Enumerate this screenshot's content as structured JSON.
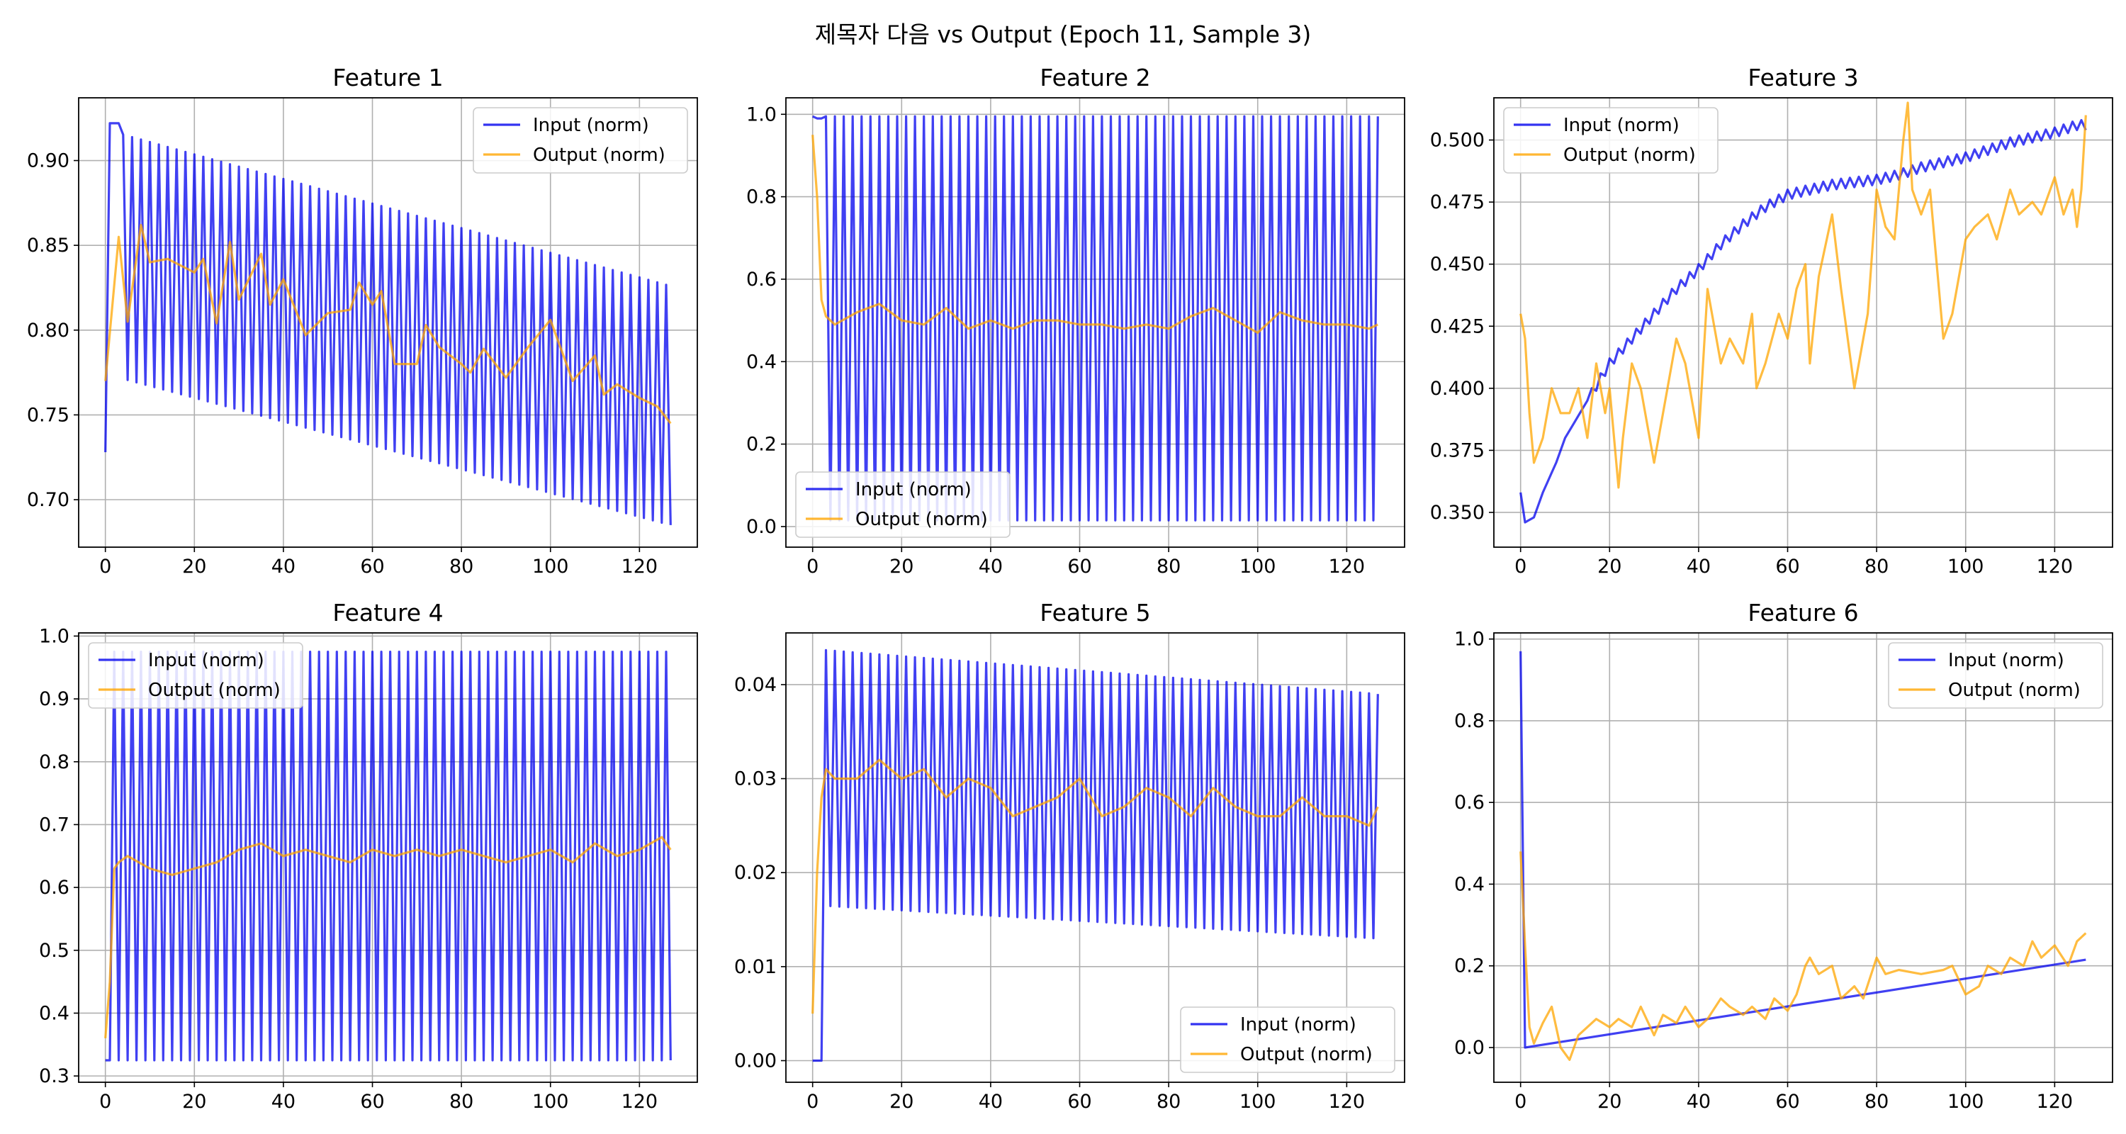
{
  "figure": {
    "title": "제목자 다음 vs Output (Epoch 11, Sample 3)"
  },
  "colors": {
    "input": "#0000ee",
    "output": "#ffa500",
    "grid": "#b0b0b0"
  },
  "chart_data": [
    {
      "type": "line",
      "title": "Feature 1",
      "legend_position": "upper right",
      "xlim": [
        -6,
        133
      ],
      "ylim": [
        0.672,
        0.937
      ],
      "xticks": [
        0,
        20,
        40,
        60,
        80,
        100,
        120
      ],
      "yticks": [
        0.7,
        0.75,
        0.8,
        0.85,
        0.9
      ],
      "ytick_labels": [
        "0.70",
        "0.75",
        "0.80",
        "0.85",
        "0.90"
      ],
      "grid": true,
      "input_model": {
        "kind": "osc_linear",
        "start": [
          [
            0,
            0.728
          ],
          [
            1,
            0.922
          ],
          [
            2,
            0.922
          ],
          [
            3,
            0.922
          ]
        ],
        "from": 3,
        "hi0": 0.916,
        "hi1": 0.826,
        "lo0": 0.772,
        "lo1": 0.685
      },
      "series": [
        {
          "name": "Input (norm)",
          "role": "input",
          "x_range": [
            0,
            127
          ]
        },
        {
          "name": "Output (norm)",
          "role": "output",
          "x": [
            0,
            3,
            5,
            8,
            10,
            14,
            20,
            22,
            25,
            28,
            30,
            35,
            37,
            40,
            45,
            50,
            55,
            57,
            60,
            62,
            65,
            70,
            72,
            75,
            80,
            82,
            85,
            90,
            95,
            100,
            105,
            110,
            112,
            115,
            120,
            124,
            127
          ],
          "y": [
            0.77,
            0.855,
            0.805,
            0.862,
            0.84,
            0.842,
            0.834,
            0.842,
            0.804,
            0.852,
            0.818,
            0.845,
            0.815,
            0.83,
            0.797,
            0.81,
            0.812,
            0.828,
            0.815,
            0.823,
            0.78,
            0.78,
            0.803,
            0.79,
            0.78,
            0.775,
            0.789,
            0.772,
            0.79,
            0.806,
            0.77,
            0.785,
            0.762,
            0.768,
            0.76,
            0.755,
            0.745
          ]
        }
      ]
    },
    {
      "type": "line",
      "title": "Feature 2",
      "legend_position": "lower left",
      "xlim": [
        -6,
        133
      ],
      "ylim": [
        -0.05,
        1.04
      ],
      "xticks": [
        0,
        20,
        40,
        60,
        80,
        100,
        120
      ],
      "yticks": [
        0.0,
        0.2,
        0.4,
        0.6,
        0.8,
        1.0
      ],
      "ytick_labels": [
        "0.0",
        "0.2",
        "0.4",
        "0.6",
        "0.8",
        "1.0"
      ],
      "grid": true,
      "input_model": {
        "kind": "osc_linear",
        "start": [
          [
            0,
            0.995
          ],
          [
            1,
            0.99
          ],
          [
            2,
            0.99
          ]
        ],
        "from": 2,
        "hi0": 0.995,
        "hi1": 0.995,
        "lo0": 0.015,
        "lo1": 0.015
      },
      "series": [
        {
          "name": "Input (norm)",
          "role": "input",
          "x_range": [
            0,
            127
          ]
        },
        {
          "name": "Output (norm)",
          "role": "output",
          "x": [
            0,
            1,
            2,
            3,
            5,
            10,
            15,
            20,
            25,
            30,
            35,
            40,
            45,
            50,
            55,
            60,
            65,
            70,
            75,
            80,
            85,
            90,
            95,
            100,
            105,
            110,
            115,
            120,
            125,
            127
          ],
          "y": [
            0.95,
            0.8,
            0.55,
            0.51,
            0.49,
            0.52,
            0.54,
            0.5,
            0.49,
            0.53,
            0.48,
            0.5,
            0.48,
            0.5,
            0.5,
            0.49,
            0.49,
            0.48,
            0.49,
            0.48,
            0.51,
            0.53,
            0.5,
            0.47,
            0.52,
            0.5,
            0.49,
            0.49,
            0.48,
            0.49
          ]
        }
      ]
    },
    {
      "type": "line",
      "title": "Feature 3",
      "legend_position": "upper left",
      "xlim": [
        -6,
        133
      ],
      "ylim": [
        0.336,
        0.517
      ],
      "xticks": [
        0,
        20,
        40,
        60,
        80,
        100,
        120
      ],
      "yticks": [
        0.35,
        0.375,
        0.4,
        0.425,
        0.45,
        0.475,
        0.5
      ],
      "ytick_labels": [
        "0.350",
        "0.375",
        "0.400",
        "0.425",
        "0.450",
        "0.475",
        "0.500"
      ],
      "grid": true,
      "input_model": {
        "kind": "wavy",
        "wiggle": 0.002
      },
      "series": [
        {
          "name": "Input (norm)",
          "role": "input",
          "x": [
            0,
            1,
            3,
            5,
            8,
            10,
            15,
            20,
            25,
            30,
            35,
            40,
            45,
            50,
            55,
            60,
            65,
            70,
            75,
            80,
            85,
            90,
            95,
            100,
            105,
            110,
            115,
            120,
            125,
            127
          ],
          "y": [
            0.358,
            0.346,
            0.348,
            0.358,
            0.37,
            0.38,
            0.395,
            0.41,
            0.42,
            0.43,
            0.44,
            0.448,
            0.458,
            0.466,
            0.473,
            0.478,
            0.48,
            0.482,
            0.483,
            0.484,
            0.486,
            0.489,
            0.491,
            0.493,
            0.496,
            0.499,
            0.501,
            0.503,
            0.506,
            0.506
          ]
        },
        {
          "name": "Output (norm)",
          "role": "output",
          "x": [
            0,
            1,
            2,
            3,
            5,
            7,
            9,
            11,
            13,
            15,
            17,
            19,
            20,
            22,
            23,
            25,
            27,
            30,
            32,
            35,
            37,
            40,
            42,
            45,
            47,
            50,
            52,
            53,
            55,
            58,
            60,
            62,
            64,
            65,
            67,
            70,
            72,
            75,
            78,
            80,
            82,
            84,
            86,
            87,
            88,
            90,
            92,
            95,
            97,
            100,
            102,
            105,
            107,
            110,
            112,
            115,
            117,
            120,
            122,
            124,
            125,
            126,
            127
          ],
          "y": [
            0.43,
            0.42,
            0.39,
            0.37,
            0.38,
            0.4,
            0.39,
            0.39,
            0.4,
            0.38,
            0.41,
            0.39,
            0.4,
            0.36,
            0.38,
            0.41,
            0.4,
            0.37,
            0.39,
            0.42,
            0.41,
            0.38,
            0.44,
            0.41,
            0.42,
            0.41,
            0.43,
            0.4,
            0.41,
            0.43,
            0.42,
            0.44,
            0.45,
            0.41,
            0.445,
            0.47,
            0.44,
            0.4,
            0.43,
            0.48,
            0.465,
            0.46,
            0.5,
            0.515,
            0.48,
            0.47,
            0.48,
            0.42,
            0.43,
            0.46,
            0.465,
            0.47,
            0.46,
            0.48,
            0.47,
            0.475,
            0.47,
            0.485,
            0.47,
            0.48,
            0.465,
            0.48,
            0.51
          ]
        }
      ]
    },
    {
      "type": "line",
      "title": "Feature 4",
      "legend_position": "upper left",
      "xlim": [
        -6,
        133
      ],
      "ylim": [
        0.29,
        1.005
      ],
      "xticks": [
        0,
        20,
        40,
        60,
        80,
        100,
        120
      ],
      "yticks": [
        0.3,
        0.4,
        0.5,
        0.6,
        0.7,
        0.8,
        0.9,
        1.0
      ],
      "ytick_labels": [
        "0.3",
        "0.4",
        "0.5",
        "0.6",
        "0.7",
        "0.8",
        "0.9",
        "1.0"
      ],
      "grid": true,
      "input_model": {
        "kind": "osc_linear",
        "start": [
          [
            0,
            0.325
          ],
          [
            1,
            0.325
          ]
        ],
        "from": 1,
        "hi0": 0.975,
        "hi1": 0.975,
        "lo0": 0.325,
        "lo1": 0.325
      },
      "series": [
        {
          "name": "Input (norm)",
          "role": "input",
          "x_range": [
            0,
            127
          ]
        },
        {
          "name": "Output (norm)",
          "role": "output",
          "x": [
            0,
            1,
            2,
            3,
            5,
            10,
            15,
            20,
            25,
            30,
            35,
            40,
            45,
            50,
            55,
            60,
            65,
            70,
            75,
            80,
            85,
            90,
            95,
            100,
            105,
            110,
            115,
            120,
            125,
            127
          ],
          "y": [
            0.36,
            0.45,
            0.63,
            0.64,
            0.65,
            0.63,
            0.62,
            0.63,
            0.64,
            0.66,
            0.67,
            0.65,
            0.66,
            0.65,
            0.64,
            0.66,
            0.65,
            0.66,
            0.65,
            0.66,
            0.65,
            0.64,
            0.65,
            0.66,
            0.64,
            0.67,
            0.65,
            0.66,
            0.68,
            0.66
          ]
        }
      ]
    },
    {
      "type": "line",
      "title": "Feature 5",
      "legend_position": "lower right",
      "xlim": [
        -6,
        133
      ],
      "ylim": [
        -0.0023,
        0.0455
      ],
      "xticks": [
        0,
        20,
        40,
        60,
        80,
        100,
        120
      ],
      "yticks": [
        0.0,
        0.01,
        0.02,
        0.03,
        0.04
      ],
      "ytick_labels": [
        "0.00",
        "0.01",
        "0.02",
        "0.03",
        "0.04"
      ],
      "grid": true,
      "input_model": {
        "kind": "osc_linear",
        "start": [
          [
            0,
            0.0
          ],
          [
            1,
            0.0
          ],
          [
            2,
            0.0
          ]
        ],
        "from": 2,
        "hi0": 0.0437,
        "hi1": 0.039,
        "lo0": 0.0165,
        "lo1": 0.013
      },
      "series": [
        {
          "name": "Input (norm)",
          "role": "input",
          "x_range": [
            0,
            127
          ]
        },
        {
          "name": "Output (norm)",
          "role": "output",
          "x": [
            0,
            1,
            2,
            3,
            5,
            10,
            15,
            20,
            25,
            30,
            35,
            40,
            45,
            50,
            55,
            60,
            65,
            70,
            75,
            80,
            85,
            90,
            95,
            100,
            105,
            110,
            115,
            120,
            125,
            127
          ],
          "y": [
            0.005,
            0.02,
            0.028,
            0.031,
            0.03,
            0.03,
            0.032,
            0.03,
            0.031,
            0.028,
            0.03,
            0.029,
            0.026,
            0.027,
            0.028,
            0.03,
            0.026,
            0.027,
            0.029,
            0.028,
            0.026,
            0.029,
            0.027,
            0.026,
            0.026,
            0.028,
            0.026,
            0.026,
            0.025,
            0.027
          ]
        }
      ]
    },
    {
      "type": "line",
      "title": "Feature 6",
      "legend_position": "upper right",
      "xlim": [
        -6,
        133
      ],
      "ylim": [
        -0.085,
        1.015
      ],
      "xticks": [
        0,
        20,
        40,
        60,
        80,
        100,
        120
      ],
      "yticks": [
        0.0,
        0.2,
        0.4,
        0.6,
        0.8,
        1.0
      ],
      "ytick_labels": [
        "0.0",
        "0.2",
        "0.4",
        "0.6",
        "0.8",
        "1.0"
      ],
      "grid": true,
      "input_model": {
        "kind": "plain"
      },
      "series": [
        {
          "name": "Input (norm)",
          "role": "input",
          "x": [
            0,
            1,
            127
          ],
          "y": [
            0.97,
            0.0,
            0.215
          ]
        },
        {
          "name": "Output (norm)",
          "role": "output",
          "x": [
            0,
            1,
            2,
            3,
            5,
            7,
            9,
            11,
            13,
            15,
            17,
            20,
            22,
            25,
            27,
            30,
            32,
            35,
            37,
            40,
            42,
            45,
            47,
            50,
            52,
            55,
            57,
            60,
            62,
            64,
            65,
            67,
            70,
            72,
            75,
            77,
            80,
            82,
            85,
            90,
            95,
            97,
            100,
            103,
            105,
            108,
            110,
            113,
            115,
            117,
            120,
            123,
            125,
            127
          ],
          "y": [
            0.48,
            0.25,
            0.05,
            0.01,
            0.06,
            0.1,
            0.0,
            -0.03,
            0.03,
            0.05,
            0.07,
            0.05,
            0.07,
            0.05,
            0.1,
            0.03,
            0.08,
            0.06,
            0.1,
            0.05,
            0.07,
            0.12,
            0.1,
            0.08,
            0.1,
            0.07,
            0.12,
            0.09,
            0.13,
            0.2,
            0.22,
            0.18,
            0.2,
            0.12,
            0.15,
            0.12,
            0.22,
            0.18,
            0.19,
            0.18,
            0.19,
            0.2,
            0.13,
            0.15,
            0.2,
            0.18,
            0.22,
            0.2,
            0.26,
            0.22,
            0.25,
            0.2,
            0.26,
            0.28
          ]
        }
      ]
    }
  ]
}
